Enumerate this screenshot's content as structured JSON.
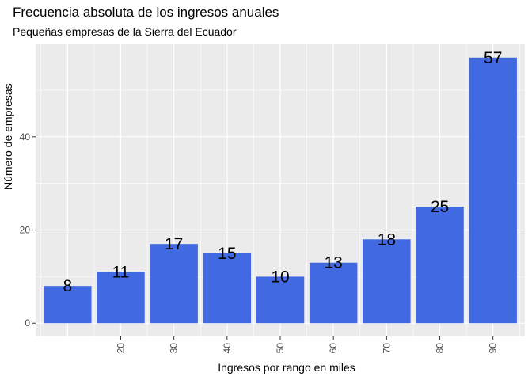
{
  "chart_data": {
    "type": "bar",
    "title": "Frecuencia absoluta de los ingresos anuales",
    "subtitle": "Pequeñas empresas de la Sierra del Ecuador",
    "xlabel": "Ingresos por rango en miles",
    "ylabel": "Número de empresas",
    "x_positions": [
      1,
      2,
      3,
      4,
      5,
      6,
      7,
      8,
      9
    ],
    "values": [
      8,
      11,
      17,
      15,
      10,
      13,
      18,
      25,
      57
    ],
    "x_tick_positions": [
      2,
      3,
      4,
      5,
      6,
      7,
      8,
      9
    ],
    "x_tick_labels": [
      "20",
      "30",
      "40",
      "50",
      "60",
      "70",
      "80",
      "90"
    ],
    "y_ticks": [
      0,
      20,
      40
    ],
    "ylim": [
      -2.85,
      59.85
    ],
    "xlim": [
      0.4,
      9.6
    ],
    "bar_color": "#4169E1",
    "panel_background": "#EBEBEB",
    "grid": true,
    "legend": "none"
  }
}
